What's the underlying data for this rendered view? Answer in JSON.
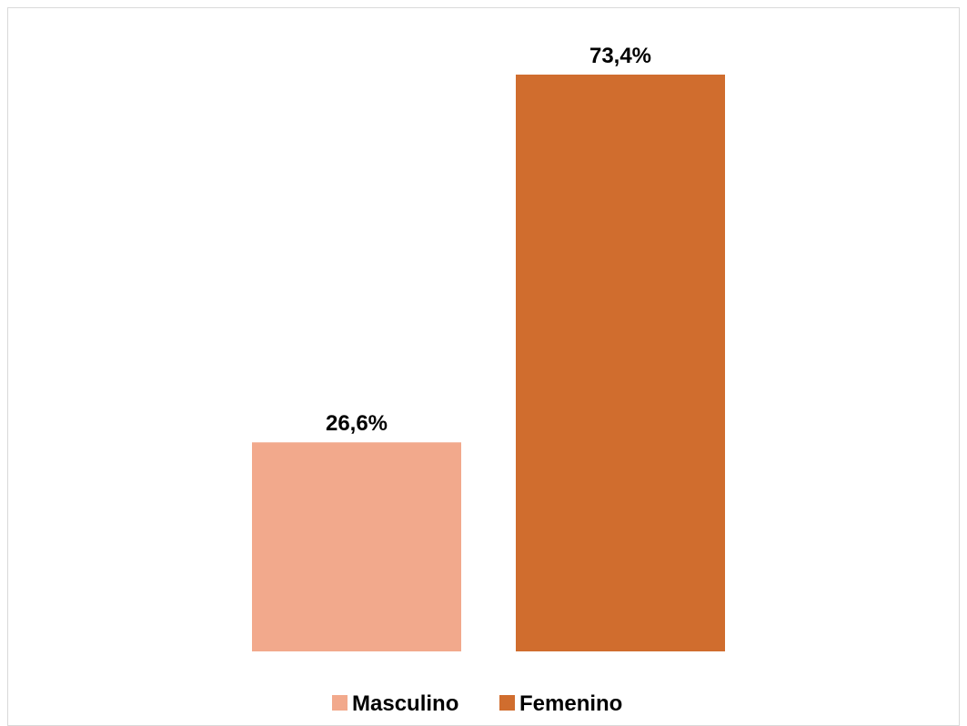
{
  "chart_data": {
    "type": "bar",
    "categories": [
      "Masculino",
      "Femenino"
    ],
    "values": [
      26.6,
      73.4
    ],
    "value_labels": [
      "26,6%",
      "73,4%"
    ],
    "colors": [
      "#F2A98C",
      "#D06D2E"
    ],
    "ylim": [
      0,
      73.4
    ],
    "grid": false,
    "legend": {
      "placement": "bottom",
      "entries": [
        {
          "name": "Masculino",
          "color": "#F2A98C"
        },
        {
          "name": "Femenino",
          "color": "#D06D2E"
        }
      ]
    },
    "title": "",
    "xlabel": "",
    "ylabel": ""
  }
}
